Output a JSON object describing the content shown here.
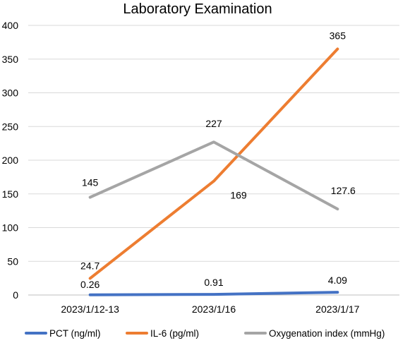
{
  "chart_data": {
    "type": "line",
    "title": "Laboratory Examination",
    "xlabel": "",
    "ylabel": "",
    "categories": [
      "2023/1/12-13",
      "2023/1/16",
      "2023/1/17"
    ],
    "ylim": [
      0,
      400
    ],
    "yticks": [
      0,
      50,
      100,
      150,
      200,
      250,
      300,
      350,
      400
    ],
    "grid": true,
    "legend_position": "bottom",
    "series": [
      {
        "name": "PCT (ng/ml)",
        "values": [
          0.26,
          0.91,
          4.09
        ],
        "labels": [
          "0.26",
          "0.91",
          "4.09"
        ],
        "color": "#4472c4"
      },
      {
        "name": "IL-6 (pg/ml)",
        "values": [
          24.7,
          169,
          365
        ],
        "labels": [
          "24.7",
          "169",
          "365"
        ],
        "color": "#ed7d31"
      },
      {
        "name": "Oxygenation index (mmHg)",
        "values": [
          145,
          227,
          127.6
        ],
        "labels": [
          "145",
          "227",
          "127.6"
        ],
        "color": "#a5a5a5"
      }
    ]
  }
}
